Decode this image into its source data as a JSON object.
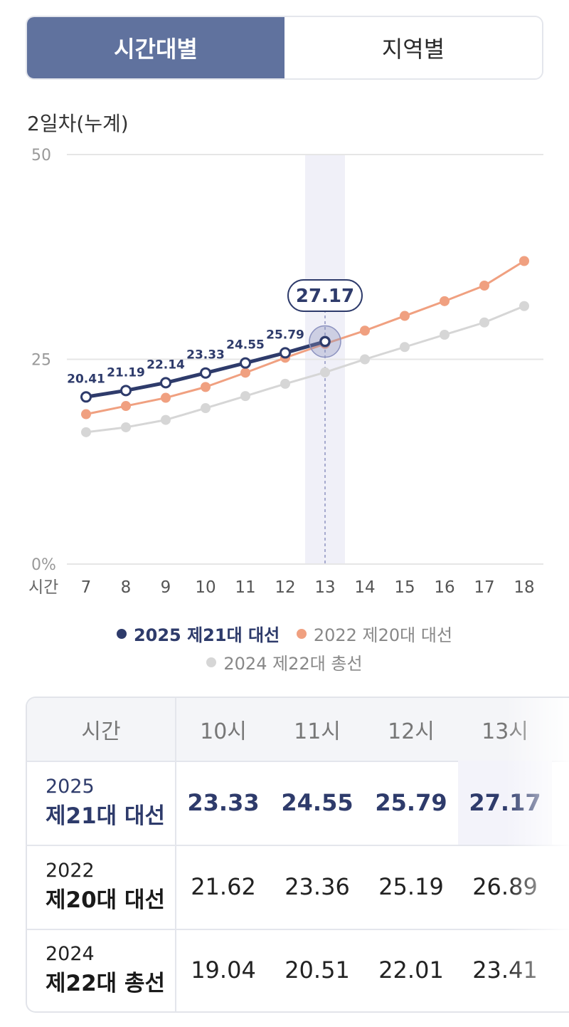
{
  "tabs": [
    {
      "label": "시간대별",
      "active": true
    },
    {
      "label": "지역별",
      "active": false
    }
  ],
  "section_label": "2일차(누계)",
  "chart_data": {
    "type": "line",
    "x": [
      7,
      8,
      9,
      10,
      11,
      12,
      13,
      14,
      15,
      16,
      17,
      18
    ],
    "xlabel": "시간",
    "ylim": [
      0,
      50
    ],
    "y_ticks": [
      "0%",
      "25",
      "50"
    ],
    "y_tick_values": [
      0,
      25,
      50
    ],
    "highlight_x": 13,
    "highlight_value": "27.17",
    "series": [
      {
        "name": "2025 제21대 대선",
        "color": "#2e3b6b",
        "values": [
          20.41,
          21.19,
          22.14,
          23.33,
          24.55,
          25.79,
          27.17,
          null,
          null,
          null,
          null,
          null
        ],
        "labels": [
          "20.41",
          "21.19",
          "22.14",
          "23.33",
          "24.55",
          "25.79"
        ]
      },
      {
        "name": "2022 제20대 대선",
        "color": "#f0a080",
        "values": [
          18.3,
          19.3,
          20.3,
          21.62,
          23.36,
          25.19,
          26.89,
          28.5,
          30.3,
          32.1,
          34.0,
          37.0
        ]
      },
      {
        "name": "2024 제22대 총선",
        "color": "#d6d6d6",
        "values": [
          16.1,
          16.7,
          17.6,
          19.04,
          20.51,
          22.01,
          23.41,
          25.0,
          26.5,
          28.0,
          29.5,
          31.5
        ]
      }
    ],
    "grid": true,
    "legend_position": "bottom"
  },
  "table": {
    "header_label": "시간",
    "columns": [
      "10시",
      "11시",
      "12시",
      "13시"
    ],
    "rows": [
      {
        "year": "2025",
        "name": "제21대 대선",
        "values": [
          "23.33",
          "24.55",
          "25.79",
          "27.17"
        ]
      },
      {
        "year": "2022",
        "name": "제20대 대선",
        "values": [
          "21.62",
          "23.36",
          "25.19",
          "26.89"
        ]
      },
      {
        "year": "2024",
        "name": "제22대 총선",
        "values": [
          "19.04",
          "20.51",
          "22.01",
          "23.41"
        ]
      }
    ]
  }
}
